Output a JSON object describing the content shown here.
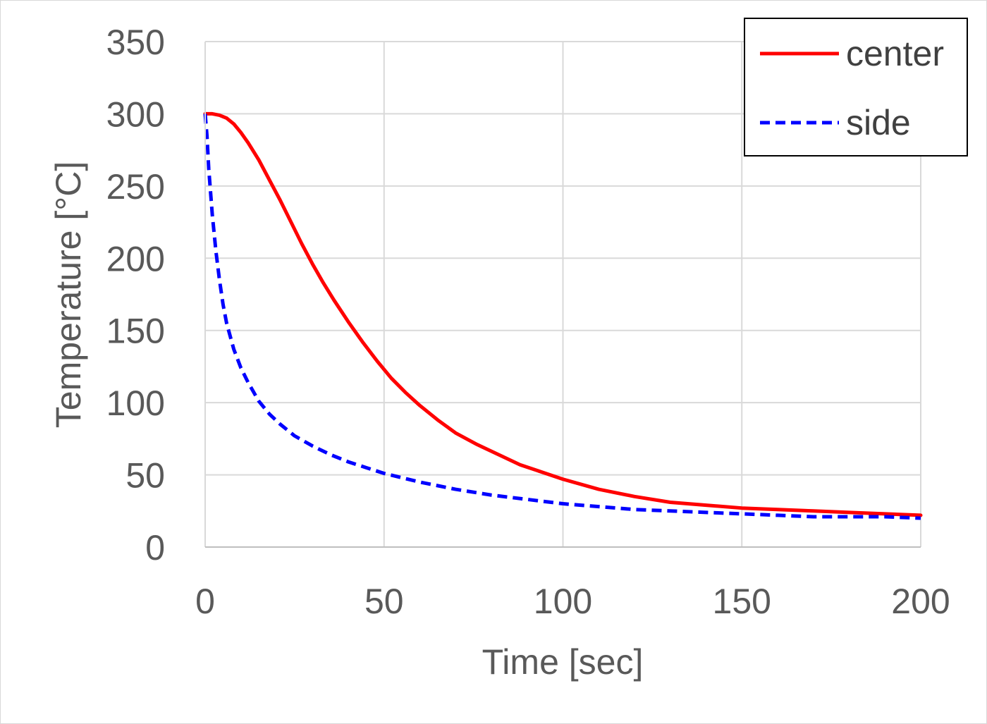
{
  "chart_data": {
    "type": "line",
    "title": "",
    "xlabel": "Time [sec]",
    "ylabel": "Temperature [°C]",
    "xlim": [
      0,
      200
    ],
    "ylim": [
      0,
      350
    ],
    "xticks": [
      "0",
      "50",
      "100",
      "150",
      "200"
    ],
    "yticks": [
      "0",
      "50",
      "100",
      "150",
      "200",
      "250",
      "300",
      "350"
    ],
    "grid": true,
    "legend_position": "top-right",
    "series": [
      {
        "name": "center",
        "color": "#ff0000",
        "line_style": "solid",
        "x": [
          0,
          2,
          4,
          6,
          8,
          10,
          12,
          15,
          18,
          21,
          24,
          27,
          30,
          33,
          36,
          40,
          44,
          48,
          52,
          56,
          60,
          65,
          70,
          76,
          82,
          88,
          94,
          100,
          110,
          120,
          130,
          140,
          150,
          160,
          170,
          180,
          190,
          200
        ],
        "values": [
          300,
          300,
          299,
          297,
          293,
          287,
          280,
          268,
          254,
          240,
          225,
          210,
          196,
          183,
          171,
          156,
          142,
          129,
          117,
          107,
          98,
          88,
          79,
          71,
          64,
          57,
          52,
          47,
          40,
          35,
          31,
          29,
          27,
          26,
          25,
          24,
          23,
          22
        ]
      },
      {
        "name": "side",
        "color": "#0000ff",
        "line_style": "dashed",
        "x": [
          0,
          0.5,
          1,
          2,
          3,
          4,
          5,
          6,
          8,
          10,
          12,
          15,
          18,
          21,
          25,
          30,
          35,
          40,
          45,
          50,
          55,
          60,
          70,
          80,
          90,
          100,
          110,
          120,
          130,
          140,
          150,
          160,
          170,
          180,
          190,
          200
        ],
        "values": [
          300,
          285,
          262,
          230,
          205,
          185,
          168,
          155,
          137,
          124,
          114,
          101,
          92,
          85,
          77,
          70,
          64,
          59,
          55,
          51,
          48,
          45,
          40,
          36,
          33,
          30,
          28,
          26,
          25,
          24,
          23,
          22,
          21,
          21,
          21,
          20
        ]
      }
    ]
  }
}
